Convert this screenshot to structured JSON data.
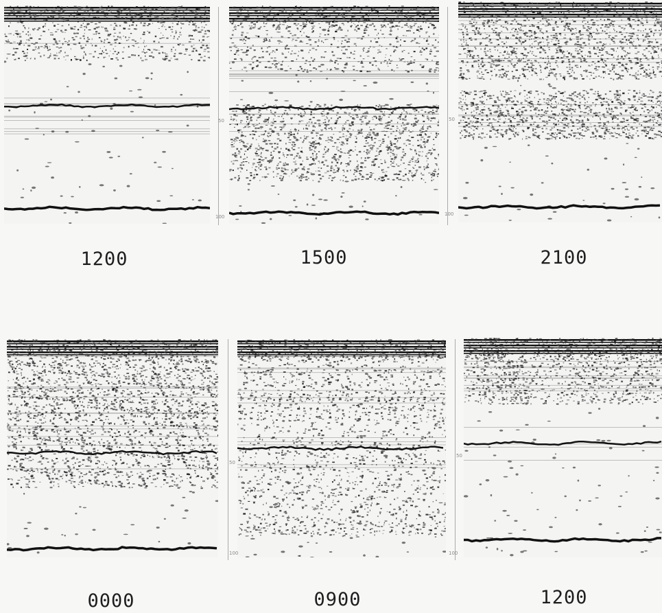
{
  "figure": {
    "top_row": [
      {
        "time": "1200"
      },
      {
        "time": "1500"
      },
      {
        "time": "2100"
      }
    ],
    "bottom_row": [
      {
        "time": "0000"
      },
      {
        "time": "0900"
      },
      {
        "time": "1200"
      }
    ],
    "depth_ticks": {
      "mid": "50",
      "bottom": "100"
    }
  }
}
